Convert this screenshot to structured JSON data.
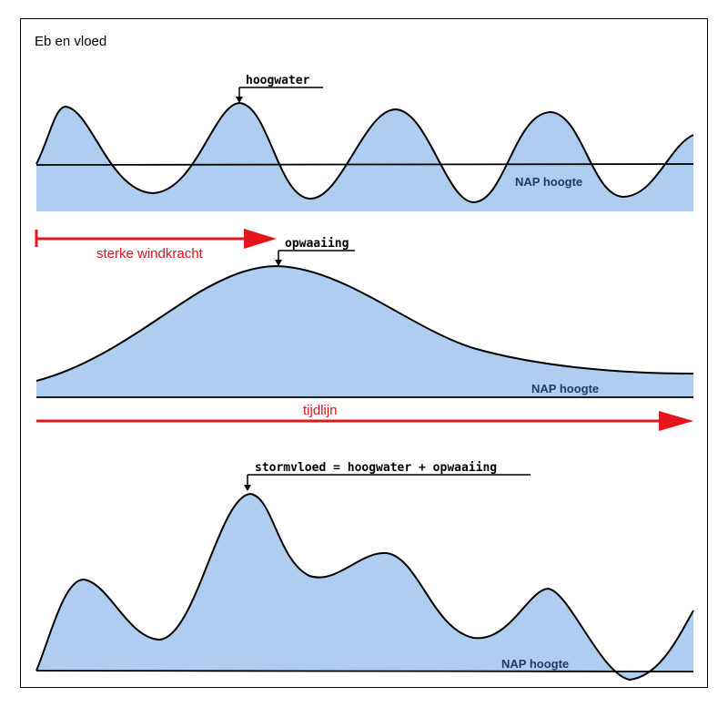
{
  "title": "Eb en vloed",
  "panel_top": {
    "callout": "hoogwater",
    "reference": "NAP hoogte"
  },
  "panel_middle": {
    "wind_label": "sterke windkracht",
    "callout": "opwaaiing",
    "reference": "NAP hoogte"
  },
  "timeline": {
    "label": "tijdlijn"
  },
  "panel_bottom": {
    "callout": "stormvloed = hoogwater + opwaaiing",
    "reference": "NAP hoogte"
  },
  "colors": {
    "water": "#aecdf0",
    "arrow": "#e8141c",
    "line": "#000000"
  }
}
